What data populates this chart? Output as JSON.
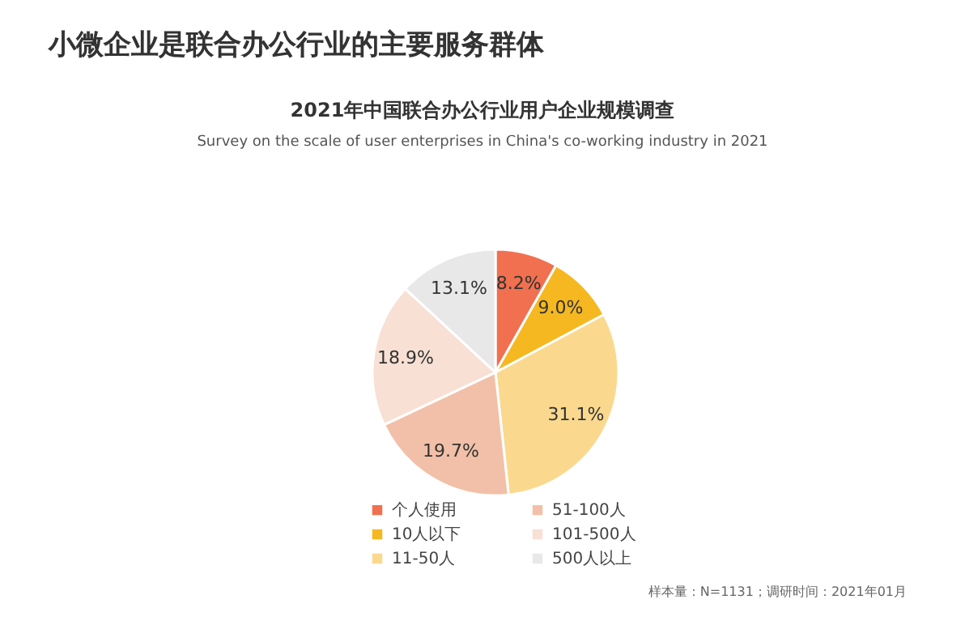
{
  "chart_data": {
    "type": "pie",
    "title": "小微企业是联合办公行业的主要服务群体",
    "subtitle": "2021年中国联合办公行业用户企业规模调查",
    "categories": [
      "个人使用",
      "10人以下",
      "11-50人",
      "51-100人",
      "101-500人",
      "500人以上"
    ],
    "values": [
      8.2,
      9.0,
      31.1,
      19.7,
      18.9,
      13.1
    ],
    "value_labels": [
      "8.2%",
      "9.0%",
      "31.1%",
      "19.7%",
      "18.9%",
      "13.1%"
    ],
    "colors": [
      "#f07050",
      "#f5b820",
      "#fad98f",
      "#f2c0a8",
      "#f8e0d5",
      "#e8e8e8"
    ],
    "legend": "bottom",
    "annotations": [
      "Survey on the scale of user enterprises in China's co-working industry in 2021",
      "样本量：N=1131；调研时间：2021年01月"
    ]
  }
}
